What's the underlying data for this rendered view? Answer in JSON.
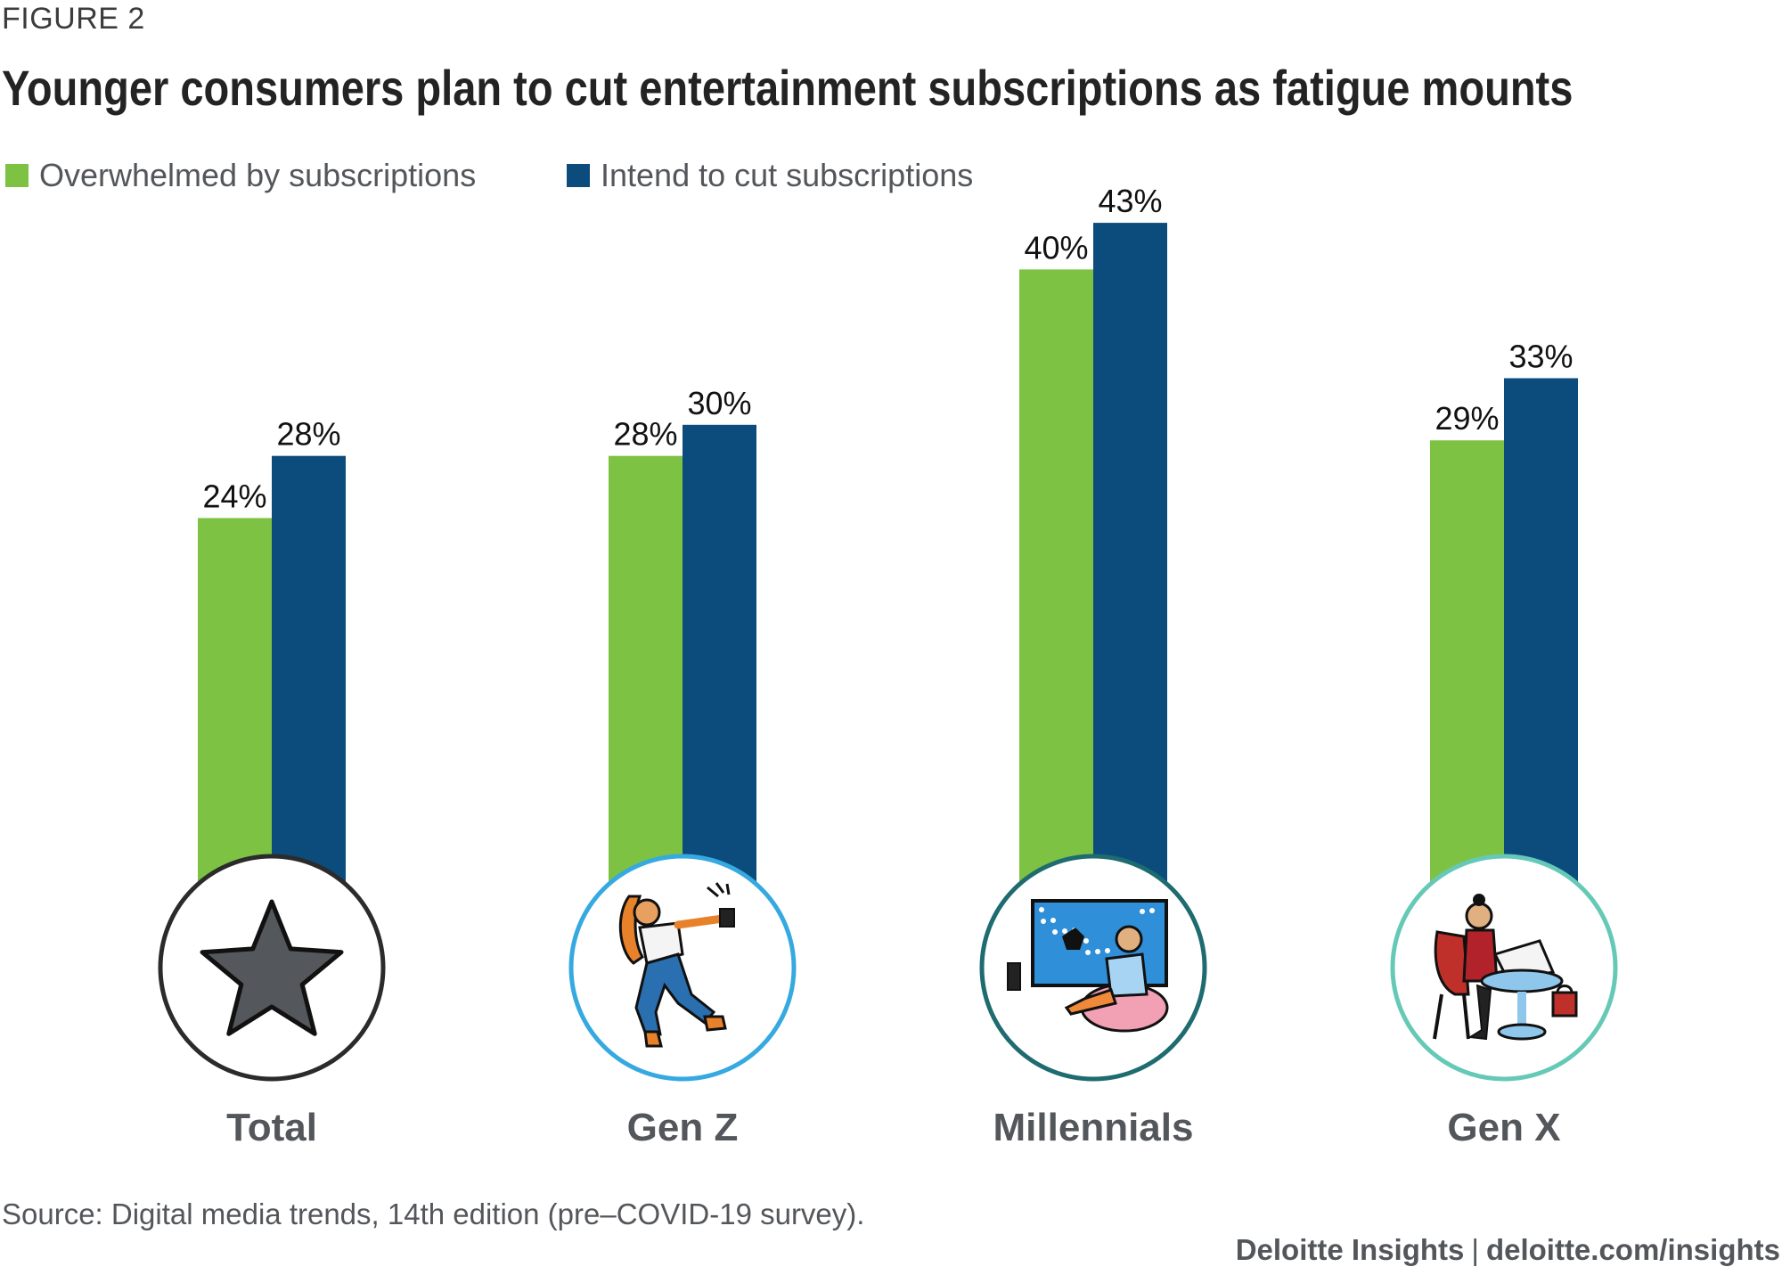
{
  "figure_label": "FIGURE 2",
  "title": "Younger consumers plan to cut entertainment subscriptions as fatigue mounts",
  "source": "Source: Digital media trends, 14th edition (pre–COVID-19 survey).",
  "credit": {
    "brand": "Deloitte Insights",
    "separator": "|",
    "url": "deloitte.com/insights"
  },
  "colors": {
    "green": "#7dc242",
    "blue": "#0b4c7d",
    "star_fill": "#54575b",
    "ring_total": "#2b2b2b",
    "ring_genz": "#35a9e0",
    "ring_millennials": "#1e6b70",
    "ring_genx": "#66c9b8"
  },
  "chart_data": {
    "type": "bar",
    "categories": [
      "Total",
      "Gen Z",
      "Millennials",
      "Gen X"
    ],
    "category_icons": [
      "star-icon",
      "dancing-person-icon",
      "gamer-person-icon",
      "laptop-person-icon"
    ],
    "series": [
      {
        "name": "Overwhelmed by subscriptions",
        "values": [
          24,
          28,
          40,
          29
        ],
        "labels": [
          "24%",
          "28%",
          "40%",
          "29%"
        ],
        "color": "#7dc242"
      },
      {
        "name": "Intend to cut subscriptions",
        "values": [
          28,
          30,
          43,
          33
        ],
        "labels": [
          "28%",
          "30%",
          "43%",
          "33%"
        ],
        "color": "#0b4c7d"
      }
    ],
    "unit": "%",
    "legend_position": "top-left",
    "grid": false
  }
}
